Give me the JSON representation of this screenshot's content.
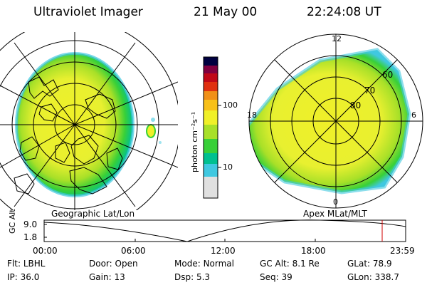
{
  "header": {
    "instrument": "Ultraviolet Imager",
    "date": "21 May 00",
    "time": "22:24:08 UT"
  },
  "left_panel": {
    "label": "Geographic Lat/Lon"
  },
  "colorbar": {
    "unit_label": "photon cm⁻²s⁻¹",
    "ticks": [
      "100",
      "10"
    ],
    "colors": [
      "#e0e0e0",
      "#40c8e0",
      "#00c090",
      "#38d038",
      "#a8e028",
      "#f0f028",
      "#f8c018",
      "#f09018",
      "#e03010",
      "#c00818",
      "#800040",
      "#000040"
    ]
  },
  "right_panel": {
    "label": "Apex MLat/MLT",
    "mlt_labels": [
      "12",
      "18",
      "6",
      "0"
    ],
    "mlat_labels": [
      "60",
      "70",
      "80"
    ]
  },
  "altitude_plot": {
    "ylabel": "GC Alt",
    "y_ticks": [
      "9.0",
      "1.8"
    ],
    "x_ticks": [
      "00:00",
      "06:00",
      "12:00",
      "18:00",
      "23:59"
    ],
    "marker_color": "#d00000"
  },
  "status": {
    "row1": [
      {
        "label": "Flt:",
        "value": "LBHL"
      },
      {
        "label": "Door:",
        "value": "Open"
      },
      {
        "label": "Mode:",
        "value": "Normal"
      },
      {
        "label": "GC Alt:",
        "value": "8.1 Re"
      },
      {
        "label": "GLat:",
        "value": "78.9"
      }
    ],
    "row2": [
      {
        "label": "IP:",
        "value": "36.0"
      },
      {
        "label": "Gain:",
        "value": "13"
      },
      {
        "label": "Dsp:",
        "value": "5.3"
      },
      {
        "label": "Seq:",
        "value": "39"
      },
      {
        "label": "GLon:",
        "value": "338.7"
      }
    ]
  }
}
